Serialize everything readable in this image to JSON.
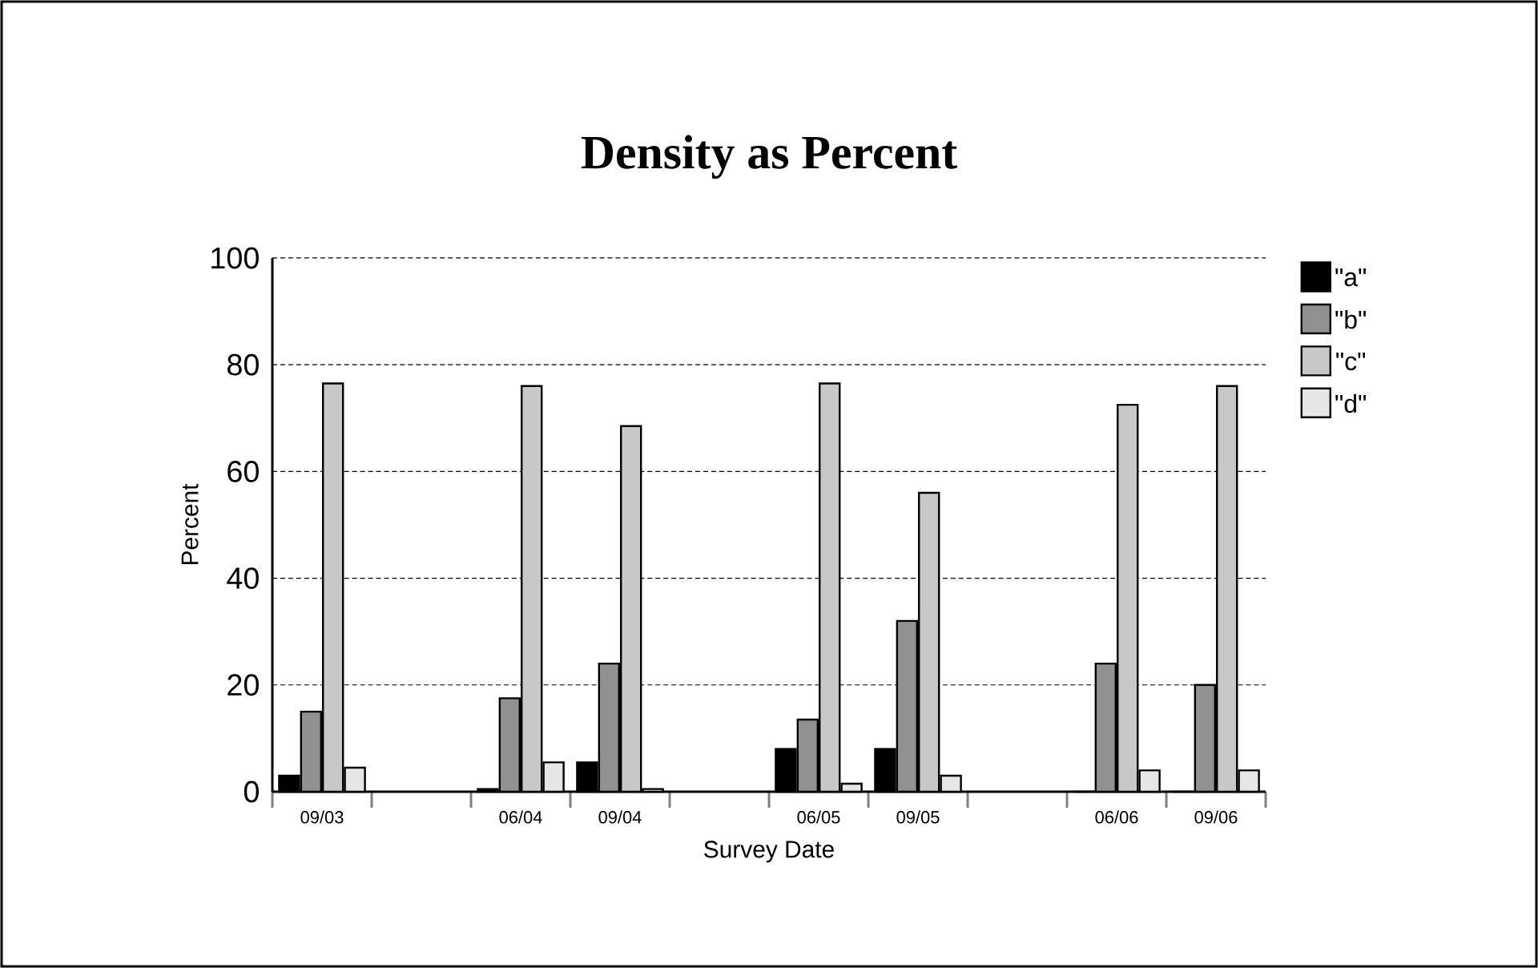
{
  "chart_data": {
    "type": "bar",
    "title": "Density as Percent",
    "xlabel": "Survey Date",
    "ylabel": "Percent",
    "categories": [
      "09/03",
      null,
      "06/04",
      "09/04",
      null,
      "06/05",
      "09/05",
      null,
      "06/06",
      "09/06"
    ],
    "series": [
      {
        "name": "\"a\"",
        "color": "#000000",
        "values": [
          3,
          null,
          0.5,
          5.5,
          null,
          8,
          8,
          null,
          0,
          0
        ]
      },
      {
        "name": "\"b\"",
        "color": "#919191",
        "values": [
          15,
          null,
          17.5,
          24,
          null,
          13.5,
          32,
          null,
          24,
          20
        ]
      },
      {
        "name": "\"c\"",
        "color": "#c8c8c8",
        "values": [
          76.5,
          null,
          76,
          68.5,
          null,
          76.5,
          56,
          null,
          72.5,
          76
        ]
      },
      {
        "name": "\"d\"",
        "color": "#e6e6e6",
        "values": [
          4.5,
          null,
          5.5,
          0.5,
          null,
          1.5,
          3,
          null,
          4,
          4
        ]
      }
    ],
    "ylim": [
      0,
      100
    ],
    "yticks": [
      0,
      20,
      40,
      60,
      80,
      100
    ],
    "grid": "y",
    "legend": "right"
  }
}
